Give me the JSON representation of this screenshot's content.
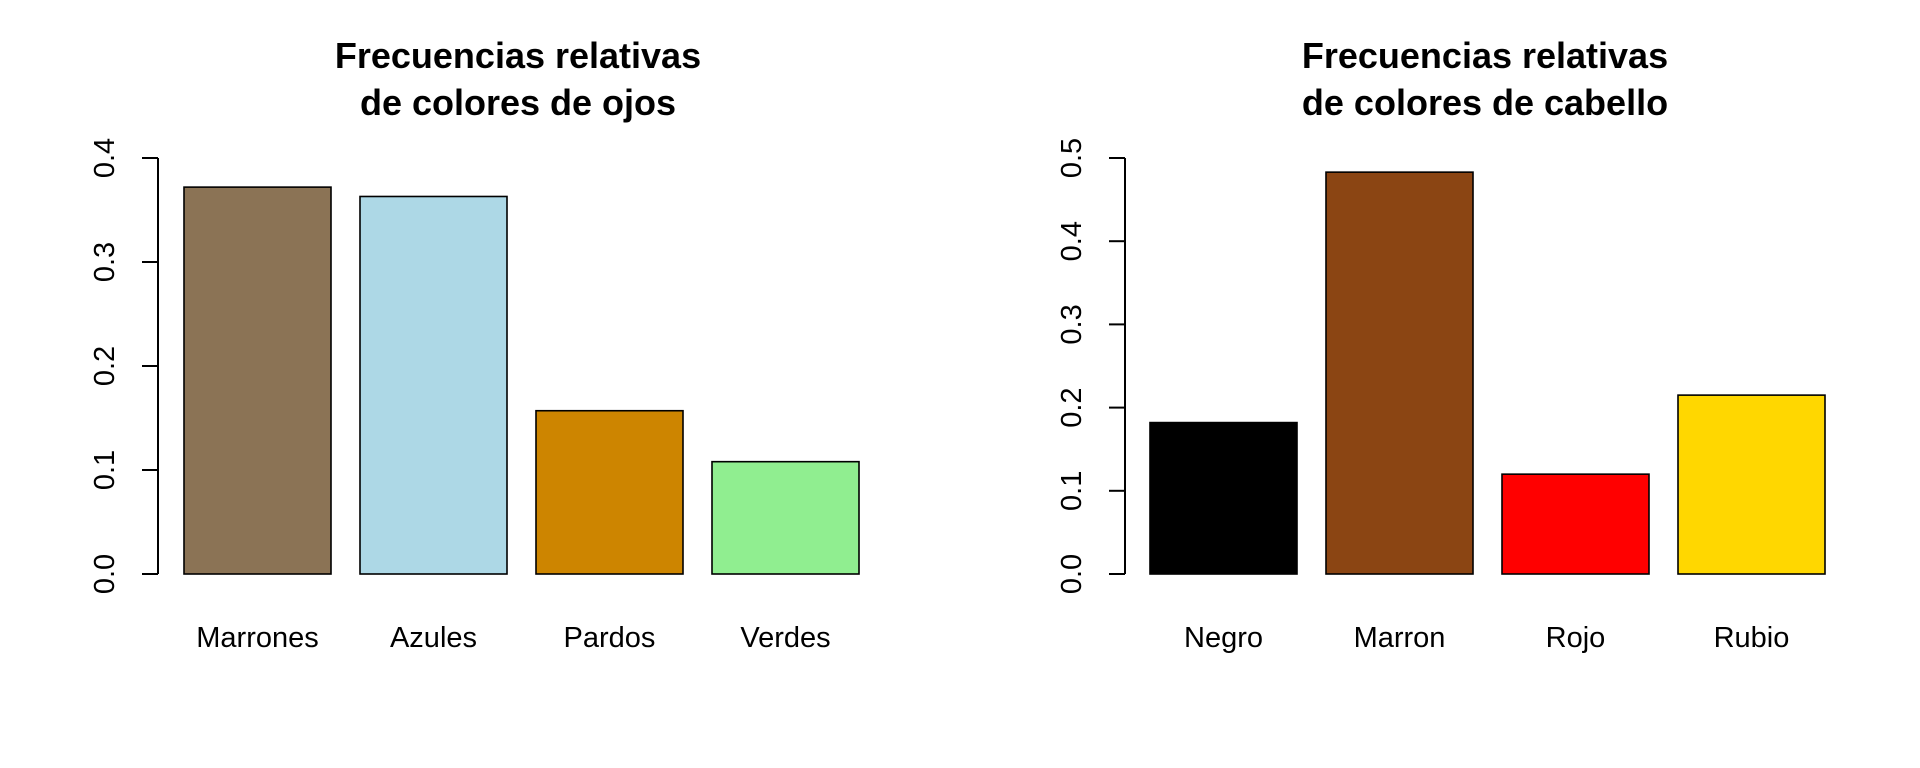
{
  "chart_data": [
    {
      "type": "bar",
      "title": [
        "Frecuencias relativas",
        "de colores de ojos"
      ],
      "xlabel": "",
      "ylabel": "",
      "categories": [
        "Marrones",
        "Azules",
        "Pardos",
        "Verdes"
      ],
      "values": [
        0.372,
        0.363,
        0.157,
        0.108
      ],
      "colors": [
        "#8B7355",
        "#ADD8E6",
        "#CD8500",
        "#90EE90"
      ],
      "yticks": [
        "0.0",
        "0.1",
        "0.2",
        "0.3",
        "0.4"
      ],
      "ylim": [
        0,
        0.4
      ],
      "grid": false
    },
    {
      "type": "bar",
      "title": [
        "Frecuencias relativas",
        "de colores de cabello"
      ],
      "xlabel": "",
      "ylabel": "",
      "categories": [
        "Negro",
        "Marron",
        "Rojo",
        "Rubio"
      ],
      "values": [
        0.182,
        0.483,
        0.12,
        0.215
      ],
      "colors": [
        "#000000",
        "#8B4513",
        "#FF0000",
        "#FFD700"
      ],
      "yticks": [
        "0.0",
        "0.1",
        "0.2",
        "0.3",
        "0.4",
        "0.5"
      ],
      "ylim": [
        0,
        0.5
      ],
      "grid": false
    }
  ]
}
